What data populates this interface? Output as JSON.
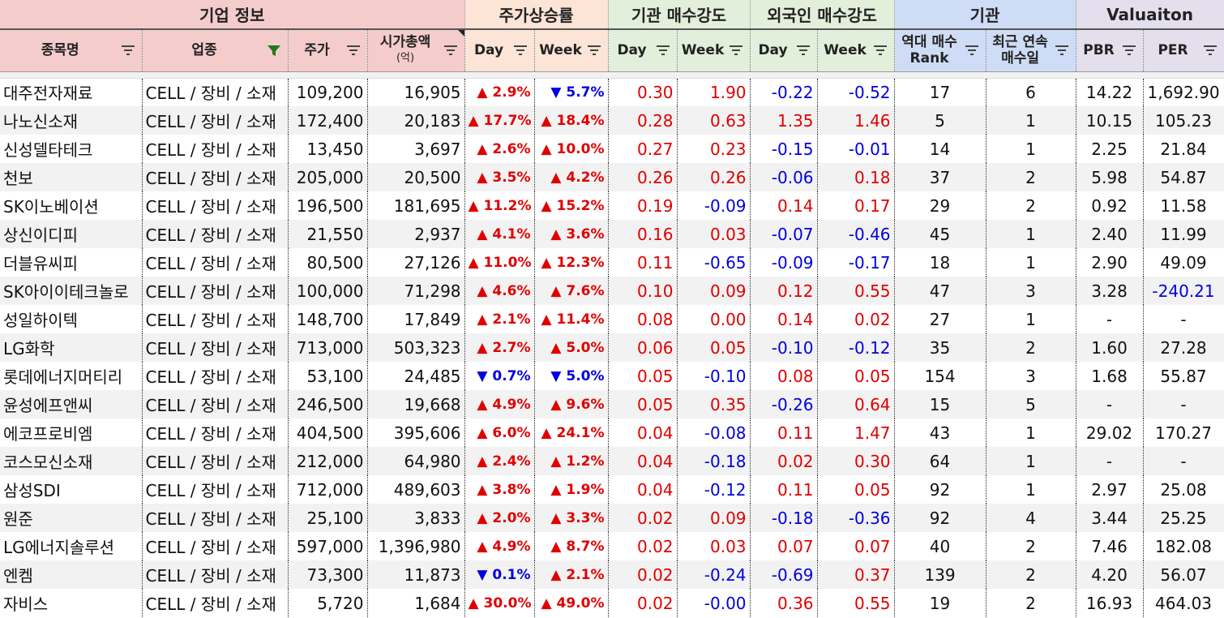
{
  "groups": [
    {
      "label": "기업 정보",
      "span": 4
    },
    {
      "label": "주가상승률",
      "span": 2
    },
    {
      "label": "기관 매수강도",
      "span": 2
    },
    {
      "label": "외국인 매수강도",
      "span": 2
    },
    {
      "label": "기관",
      "span": 2
    },
    {
      "label": "Valuaiton",
      "span": 2
    }
  ],
  "columns": [
    [
      "종목명"
    ],
    [
      "업종"
    ],
    [
      "주가"
    ],
    [
      "시가총액",
      "(억)"
    ],
    [
      "Day"
    ],
    [
      "Week"
    ],
    [
      "Day"
    ],
    [
      "Week"
    ],
    [
      "Day"
    ],
    [
      "Week"
    ],
    [
      "역대 매수",
      "Rank"
    ],
    [
      "최근 연속",
      "매수일"
    ],
    [
      "PBR"
    ],
    [
      "PER"
    ]
  ],
  "rows": [
    [
      "대주전자재료",
      "CELL / 장비 / 소재",
      "109,200",
      "16,905",
      "▲ 2.9%",
      "▼ 5.7%",
      "0.30",
      "1.90",
      "-0.22",
      "-0.52",
      "17",
      "6",
      "14.22",
      "1,692.90"
    ],
    [
      "나노신소재",
      "CELL / 장비 / 소재",
      "172,400",
      "20,183",
      "▲ 17.7%",
      "▲ 18.4%",
      "0.28",
      "0.63",
      "1.35",
      "1.46",
      "5",
      "1",
      "10.15",
      "105.23"
    ],
    [
      "신성델타테크",
      "CELL / 장비 / 소재",
      "13,450",
      "3,697",
      "▲ 2.6%",
      "▲ 10.0%",
      "0.27",
      "0.23",
      "-0.15",
      "-0.01",
      "14",
      "1",
      "2.25",
      "21.84"
    ],
    [
      "천보",
      "CELL / 장비 / 소재",
      "205,000",
      "20,500",
      "▲ 3.5%",
      "▲ 4.2%",
      "0.26",
      "0.26",
      "-0.06",
      "0.18",
      "37",
      "2",
      "5.98",
      "54.87"
    ],
    [
      "SK이노베이션",
      "CELL / 장비 / 소재",
      "196,500",
      "181,695",
      "▲ 11.2%",
      "▲ 15.2%",
      "0.19",
      "-0.09",
      "0.14",
      "0.17",
      "29",
      "2",
      "0.92",
      "11.58"
    ],
    [
      "상신이디피",
      "CELL / 장비 / 소재",
      "21,550",
      "2,937",
      "▲ 4.1%",
      "▲ 3.6%",
      "0.16",
      "0.03",
      "-0.07",
      "-0.46",
      "45",
      "1",
      "2.40",
      "11.99"
    ],
    [
      "더블유씨피",
      "CELL / 장비 / 소재",
      "80,500",
      "27,126",
      "▲ 11.0%",
      "▲ 12.3%",
      "0.11",
      "-0.65",
      "-0.09",
      "-0.17",
      "18",
      "1",
      "2.90",
      "49.09"
    ],
    [
      "SK아이이테크놀로",
      "CELL / 장비 / 소재",
      "100,000",
      "71,298",
      "▲ 4.6%",
      "▲ 7.6%",
      "0.10",
      "0.09",
      "0.12",
      "0.55",
      "47",
      "3",
      "3.28",
      "-240.21"
    ],
    [
      "성일하이텍",
      "CELL / 장비 / 소재",
      "148,700",
      "17,849",
      "▲ 2.1%",
      "▲ 11.4%",
      "0.08",
      "0.00",
      "0.14",
      "0.02",
      "27",
      "1",
      "-",
      "-"
    ],
    [
      "LG화학",
      "CELL / 장비 / 소재",
      "713,000",
      "503,323",
      "▲ 2.7%",
      "▲ 5.0%",
      "0.06",
      "0.05",
      "-0.10",
      "-0.12",
      "35",
      "2",
      "1.60",
      "27.28"
    ],
    [
      "롯데에너지머티리",
      "CELL / 장비 / 소재",
      "53,100",
      "24,485",
      "▼ 0.7%",
      "▼ 5.0%",
      "0.05",
      "-0.10",
      "0.08",
      "0.05",
      "154",
      "3",
      "1.68",
      "55.87"
    ],
    [
      "윤성에프앤씨",
      "CELL / 장비 / 소재",
      "246,500",
      "19,668",
      "▲ 4.9%",
      "▲ 9.6%",
      "0.05",
      "0.35",
      "-0.26",
      "0.64",
      "15",
      "5",
      "-",
      "-"
    ],
    [
      "에코프로비엠",
      "CELL / 장비 / 소재",
      "404,500",
      "395,606",
      "▲ 6.0%",
      "▲ 24.1%",
      "0.04",
      "-0.08",
      "0.11",
      "1.47",
      "43",
      "1",
      "29.02",
      "170.27"
    ],
    [
      "코스모신소재",
      "CELL / 장비 / 소재",
      "212,000",
      "64,980",
      "▲ 2.4%",
      "▲ 1.2%",
      "0.04",
      "-0.18",
      "0.02",
      "0.30",
      "64",
      "1",
      "-",
      "-"
    ],
    [
      "삼성SDI",
      "CELL / 장비 / 소재",
      "712,000",
      "489,603",
      "▲ 3.8%",
      "▲ 1.9%",
      "0.04",
      "-0.12",
      "0.11",
      "0.05",
      "92",
      "1",
      "2.97",
      "25.08"
    ],
    [
      "원준",
      "CELL / 장비 / 소재",
      "25,100",
      "3,833",
      "▲ 2.0%",
      "▲ 3.3%",
      "0.02",
      "0.09",
      "-0.18",
      "-0.36",
      "92",
      "4",
      "3.44",
      "25.25"
    ],
    [
      "LG에너지솔루션",
      "CELL / 장비 / 소재",
      "597,000",
      "1,396,980",
      "▲ 4.9%",
      "▲ 8.7%",
      "0.02",
      "0.03",
      "0.07",
      "0.07",
      "40",
      "2",
      "7.46",
      "182.08"
    ],
    [
      "엔켐",
      "CELL / 장비 / 소재",
      "73,300",
      "11,873",
      "▼ 0.1%",
      "▲ 2.1%",
      "0.02",
      "-0.24",
      "-0.69",
      "0.37",
      "139",
      "2",
      "4.20",
      "56.07"
    ],
    [
      "자비스",
      "CELL / 장비 / 소재",
      "5,720",
      "1,684",
      "▲ 30.0%",
      "▲ 49.0%",
      "0.02",
      "-0.00",
      "0.36",
      "0.55",
      "19",
      "2",
      "16.93",
      "464.03"
    ]
  ]
}
